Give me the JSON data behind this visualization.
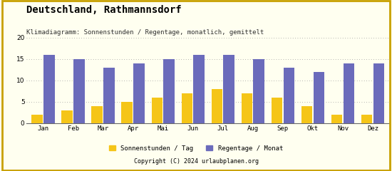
{
  "title": "Deutschland, Rathmannsdorf",
  "subtitle": "Klimadiagramm: Sonnenstunden / Regentage, monatlich, gemittelt",
  "months": [
    "Jan",
    "Feb",
    "Mar",
    "Apr",
    "Mai",
    "Jun",
    "Jul",
    "Aug",
    "Sep",
    "Okt",
    "Nov",
    "Dez"
  ],
  "sonnenstunden": [
    2,
    3,
    4,
    5,
    6,
    7,
    8,
    7,
    6,
    4,
    2,
    2
  ],
  "regentage": [
    16,
    15,
    13,
    14,
    15,
    16,
    16,
    15,
    13,
    12,
    14,
    14
  ],
  "bar_color_sun": "#F5C518",
  "bar_color_rain": "#6B6BBB",
  "background_color": "#FFFFF0",
  "footer_color": "#E8A800",
  "footer_text": "Copyright (C) 2024 urlaubplanen.org",
  "legend_sun": "Sonnenstunden / Tag",
  "legend_rain": "Regentage / Monat",
  "ylim": [
    0,
    20
  ],
  "yticks": [
    0,
    5,
    10,
    15,
    20
  ],
  "title_fontsize": 10,
  "subtitle_fontsize": 6.5,
  "axis_fontsize": 6.5,
  "legend_fontsize": 6.5
}
